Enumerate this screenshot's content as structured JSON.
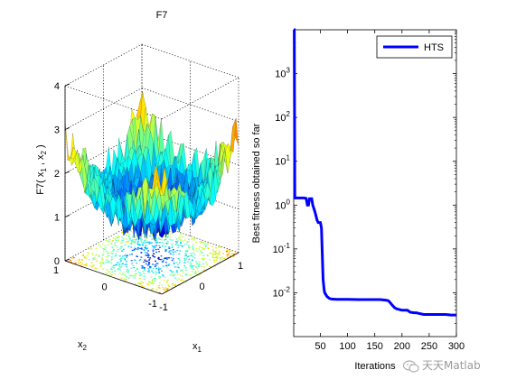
{
  "chart_data": [
    {
      "type": "surface3d",
      "title": "F7",
      "zlabel": "F7( x₁ , x₂ )",
      "zlabel_parts": [
        "F7( x",
        "1",
        " , x",
        "2",
        " )"
      ],
      "xlabel_base": "x",
      "xlabel_sub": "1",
      "ylabel_base": "x",
      "ylabel_sub": "2",
      "x_ticks": [
        "-1",
        "0",
        "1"
      ],
      "y_ticks": [
        "-1",
        "0",
        "1"
      ],
      "z_ticks": [
        "0",
        "1",
        "2",
        "3",
        "4"
      ],
      "xlim": [
        -1,
        1
      ],
      "ylim": [
        -1,
        1
      ],
      "zlim": [
        0,
        4
      ],
      "colormap": "jet",
      "contour_on_floor": true,
      "grid": true
    },
    {
      "type": "line",
      "ylabel": "Best fitness obtained so far",
      "xlabel": "Iterations",
      "yscale": "log",
      "xlim": [
        1,
        300
      ],
      "ylim": [
        0.001,
        10000
      ],
      "x_ticks": [
        "50",
        "100",
        "150",
        "200",
        "250",
        "300"
      ],
      "y_ticks": [
        {
          "base": "10",
          "exp": "3",
          "value": 1000
        },
        {
          "base": "10",
          "exp": "2",
          "value": 100
        },
        {
          "base": "10",
          "exp": "1",
          "value": 10
        },
        {
          "base": "10",
          "exp": "0",
          "value": 1
        },
        {
          "base": "10",
          "exp": "-1",
          "value": 0.1
        },
        {
          "base": "10",
          "exp": "-2",
          "value": 0.01
        }
      ],
      "legend_position": "top-right",
      "series": [
        {
          "name": "HTS",
          "color": "#0000ff",
          "x": [
            1,
            2,
            3,
            20,
            24,
            26,
            28,
            30,
            34,
            36,
            40,
            44,
            46,
            50,
            52,
            55,
            57,
            58,
            62,
            66,
            70,
            80,
            100,
            120,
            150,
            160,
            170,
            175,
            178,
            182,
            186,
            190,
            200,
            210,
            215,
            222,
            226,
            230,
            240,
            250,
            260,
            270,
            280,
            290,
            300
          ],
          "y": [
            10000,
            10000,
            1.45,
            1.45,
            1.42,
            1.0,
            1.0,
            1.4,
            1.4,
            1.0,
            0.7,
            0.45,
            0.4,
            0.4,
            0.3,
            0.02,
            0.0115,
            0.01,
            0.0083,
            0.0075,
            0.0072,
            0.0071,
            0.0071,
            0.007,
            0.007,
            0.007,
            0.0068,
            0.0066,
            0.006,
            0.0052,
            0.0046,
            0.0043,
            0.004,
            0.004,
            0.0036,
            0.0035,
            0.0035,
            0.0034,
            0.0032,
            0.0032,
            0.0032,
            0.0032,
            0.0032,
            0.0031,
            0.0031
          ]
        }
      ]
    }
  ],
  "watermark": {
    "text": "天天Matlab",
    "icon": "wechat-icon"
  }
}
